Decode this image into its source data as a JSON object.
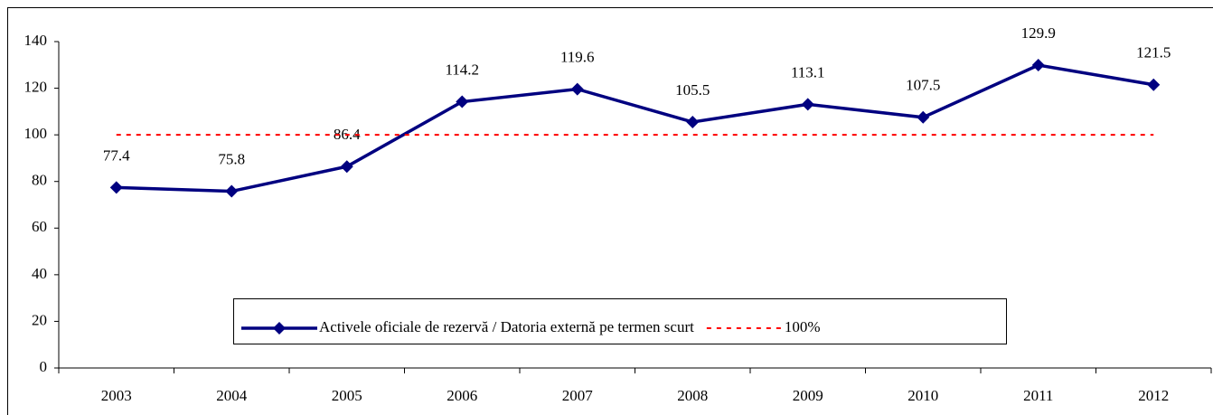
{
  "chart_data": {
    "type": "line",
    "categories": [
      "2003",
      "2004",
      "2005",
      "2006",
      "2007",
      "2008",
      "2009",
      "2010",
      "2011",
      "2012"
    ],
    "series": [
      {
        "name": "Activele oficiale de rezervă / Datoria externă pe termen scurt",
        "color": "#000080",
        "style": "solid",
        "marker": "diamond",
        "values": [
          77.4,
          75.8,
          86.4,
          114.2,
          119.6,
          105.5,
          113.1,
          107.5,
          129.9,
          121.5
        ]
      },
      {
        "name": "100%",
        "color": "#ff0000",
        "style": "dashed",
        "values": [
          100,
          100,
          100,
          100,
          100,
          100,
          100,
          100,
          100,
          100
        ]
      }
    ],
    "ylim": [
      0,
      140
    ],
    "yticks": [
      0,
      20,
      40,
      60,
      80,
      100,
      120,
      140
    ],
    "grid": false,
    "legend": "bottom"
  }
}
